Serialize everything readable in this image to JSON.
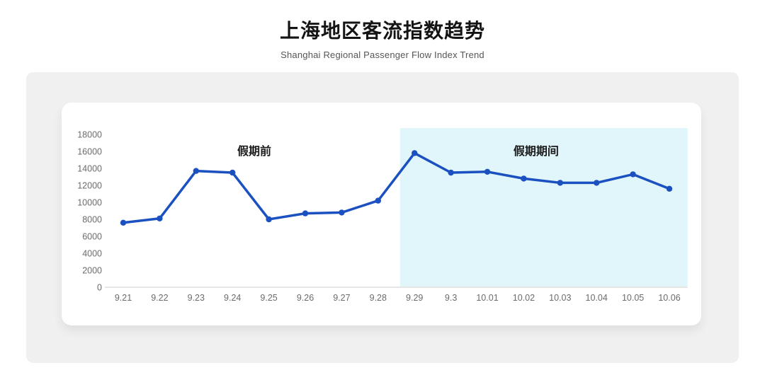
{
  "page": {
    "title": "上海地区客流指数趋势",
    "subtitle": "Shanghai Regional Passenger Flow Index Trend"
  },
  "colors": {
    "line": "#1b50c0",
    "point": "#1b50c0",
    "highlight_region": "#e0f6fb",
    "axis_line": "#cccccc",
    "tick_label": "#6b6b6b",
    "annotation_text": "#1a1a1a",
    "panel_background": "#f0f0f0",
    "card_background": "#ffffff"
  },
  "chart_data": {
    "type": "line",
    "title": "上海地区客流指数趋势",
    "subtitle": "Shanghai Regional Passenger Flow Index Trend",
    "categories": [
      "9.21",
      "9.22",
      "9.23",
      "9.24",
      "9.25",
      "9.26",
      "9.27",
      "9.28",
      "9.29",
      "9.3",
      "10.01",
      "10.02",
      "10.03",
      "10.04",
      "10.05",
      "10.06"
    ],
    "values": [
      7600,
      8100,
      13700,
      13500,
      8000,
      8700,
      8800,
      10200,
      15800,
      13500,
      13600,
      12800,
      12300,
      12300,
      13300,
      11600
    ],
    "ylim": [
      0,
      18000
    ],
    "ytick_step": 2000,
    "ytick_labels": [
      "0",
      "2000",
      "4000",
      "6000",
      "8000",
      "10000",
      "12000",
      "14000",
      "16000",
      "18000"
    ],
    "grid": false,
    "legend": false,
    "annotations": [
      {
        "text": "假期前",
        "x_index": 3.6
      },
      {
        "text": "假期期间",
        "x_index": 11.34
      }
    ],
    "highlight_region": {
      "label": "假期期间",
      "start_category": "9.29",
      "end_category": "10.06",
      "color": "#e0f6fb"
    }
  }
}
